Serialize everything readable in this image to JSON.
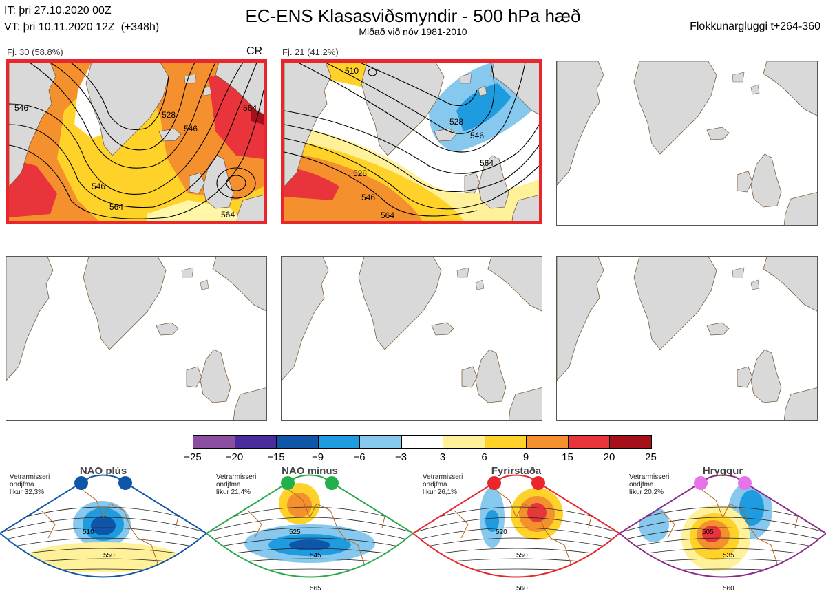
{
  "header": {
    "line1": "IT: þri 27.10.2020 00Z",
    "line2": "VT: þri 10.11.2020 12Z  (+348h)",
    "title": "EC-ENS Klasasviðsmyndir - 500 hPa hæð",
    "subtitle": "Miðað við nóv 1981-2010",
    "window": "Flokkunargluggi t+264-360"
  },
  "panels": [
    {
      "label": "Fj. 30 (58.8%)",
      "tag": "CR",
      "selected": true,
      "contours": [
        "546",
        "528",
        "546",
        "546",
        "564",
        "564",
        "564"
      ]
    },
    {
      "label": "Fj. 21 (41.2%)",
      "tag": "",
      "selected": true,
      "contours": [
        "510",
        "528",
        "546",
        "528",
        "546",
        "564",
        "564"
      ]
    },
    {
      "label": "",
      "tag": "",
      "selected": false
    },
    {
      "label": "",
      "tag": "",
      "selected": false
    },
    {
      "label": "",
      "tag": "",
      "selected": false
    },
    {
      "label": "",
      "tag": "",
      "selected": false
    }
  ],
  "colorbar": {
    "ticks": [
      "−25",
      "−20",
      "−15",
      "−9",
      "−6",
      "−3",
      "3",
      "6",
      "9",
      "15",
      "20",
      "25"
    ],
    "colors": [
      "#8a4fa0",
      "#4a2c9c",
      "#0f55a8",
      "#1f9be0",
      "#86c8ee",
      "#ffffff",
      "#fff09a",
      "#ffd22a",
      "#f5902e",
      "#e8343a",
      "#a5101a"
    ]
  },
  "climate": [
    {
      "name": "NAO plús",
      "note": "Vetrarmisseri\nondjfma\nlíkur 32,3%",
      "color": "#0f55a8",
      "dot": "#0f55a8",
      "contours": [
        "510",
        "550"
      ]
    },
    {
      "name": "NAO mínus",
      "note": "Vetrarmisseri\nondjfma\nlíkur 21,4%",
      "color": "#2aa84a",
      "dot": "#22b04b",
      "contours": [
        "525",
        "545",
        "565"
      ]
    },
    {
      "name": "Fyrirstaða",
      "note": "Vetrarmisseri\nondjfma\nlíkur 26,1%",
      "color": "#e8262b",
      "dot": "#e8262b",
      "contours": [
        "520",
        "550",
        "560"
      ]
    },
    {
      "name": "Hryggur",
      "note": "Vetrarmisseri\nondjfma\nlíkur 20,2%",
      "color": "#8a2a8a",
      "dot": "#e873e8",
      "contours": [
        "505",
        "535",
        "560"
      ]
    }
  ]
}
